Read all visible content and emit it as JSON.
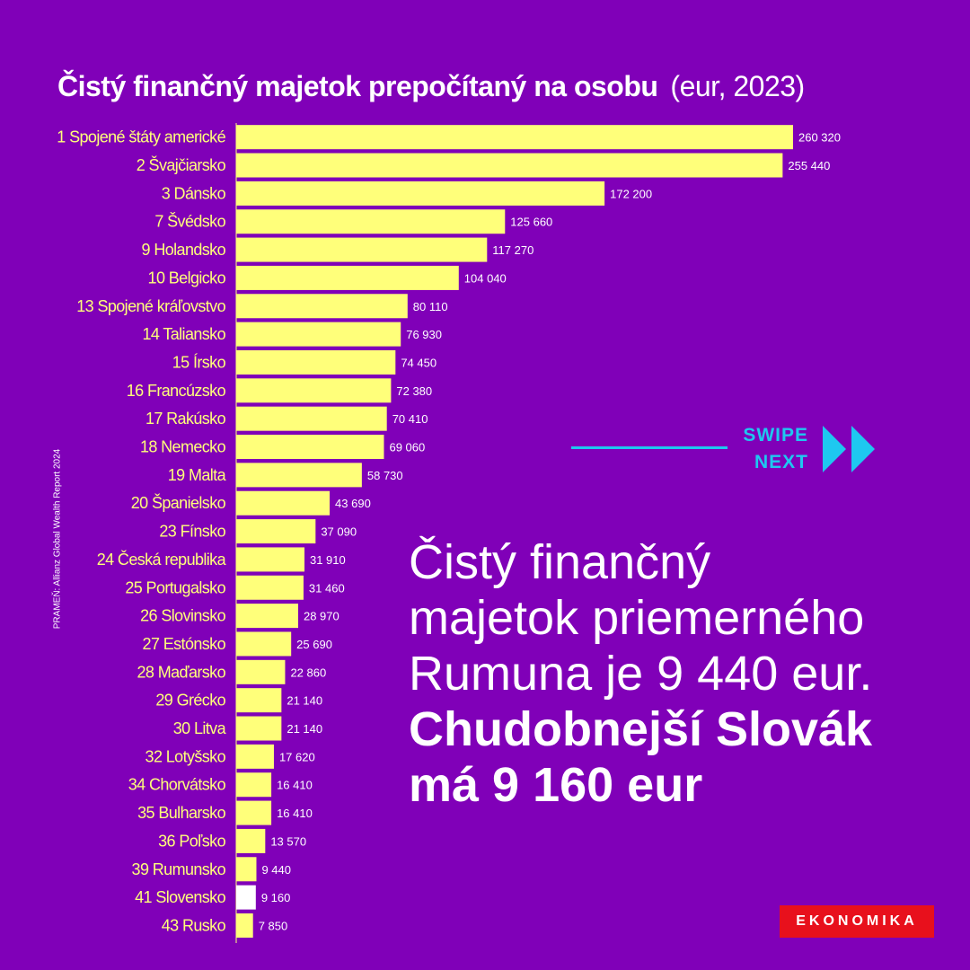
{
  "title": {
    "main": "Čistý finančný majetok prepočítaný na osobu",
    "unit": "(eur, 2023)"
  },
  "source": "PRAMEŇ: Allianz Global Wealth Report 2024",
  "swipe": {
    "line1": "SWIPE",
    "line2": "NEXT"
  },
  "headline": {
    "light_lines": [
      "Čistý finančný",
      "majetok priemerného",
      "Rumuna je 9 440 eur."
    ],
    "bold_lines": [
      "Chudobnejší Slovák",
      "má 9 160 eur"
    ]
  },
  "logo": "EKONOMIKA",
  "colors": {
    "background": "#8000b8",
    "bar": "#ffff7a",
    "highlight_bar": "#ffffff",
    "category_text": "#ffff7a",
    "accent": "#1ec8f0",
    "logo_bg": "#e8101c"
  },
  "chart_data": {
    "type": "bar",
    "orientation": "horizontal",
    "title": "Čistý finančný majetok prepočítaný na osobu",
    "subtitle": "(eur, 2023)",
    "highlight": "41 Slovensko",
    "categories": [
      "1 Spojené štáty americké",
      "2 Švajčiarsko",
      "3 Dánsko",
      "7 Švédsko",
      "9 Holandsko",
      "10 Belgicko",
      "13 Spojené kráľovstvo",
      "14 Taliansko",
      "15 Írsko",
      "16 Francúzsko",
      "17 Rakúsko",
      "18 Nemecko",
      "19 Malta",
      "20 Španielsko",
      "23 Fínsko",
      "24 Česká republika",
      "25 Portugalsko",
      "26 Slovinsko",
      "27 Estónsko",
      "28 Maďarsko",
      "29 Grécko",
      "30 Litva",
      "32 Lotyšsko",
      "34 Chorvátsko",
      "35 Bulharsko",
      "36 Poľsko",
      "39 Rumunsko",
      "41 Slovensko",
      "43 Rusko"
    ],
    "values": [
      260320,
      255440,
      172200,
      125660,
      117270,
      104040,
      80110,
      76930,
      74450,
      72380,
      70410,
      69060,
      58730,
      43690,
      37090,
      31910,
      31460,
      28970,
      25690,
      22860,
      21140,
      21140,
      17620,
      16410,
      16410,
      13570,
      9440,
      9160,
      7850
    ],
    "value_labels": [
      "260 320",
      "255 440",
      "172 200",
      "125 660",
      "117 270",
      "104 040",
      "80 110",
      "76 930",
      "74 450",
      "72 380",
      "70 410",
      "69 060",
      "58 730",
      "43 690",
      "37 090",
      "31 910",
      "31 460",
      "28 970",
      "25 690",
      "22 860",
      "21 140",
      "21 140",
      "17 620",
      "16 410",
      "16 410",
      "13 570",
      "9 440",
      "9 160",
      "7 850"
    ]
  }
}
